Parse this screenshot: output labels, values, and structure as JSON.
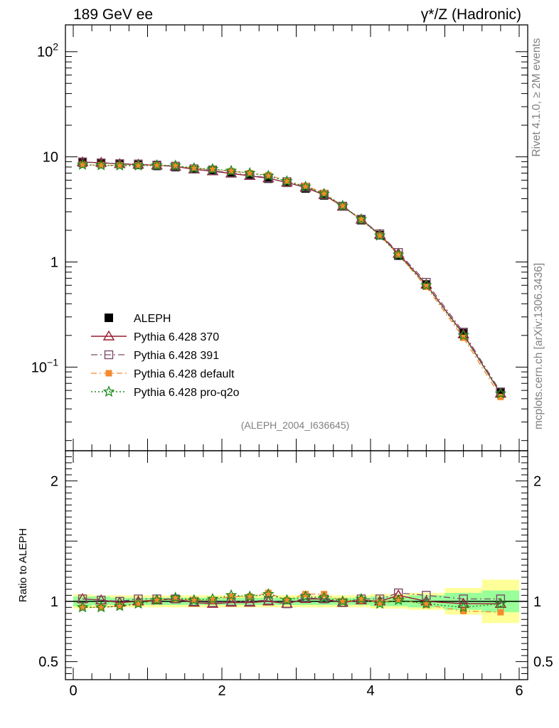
{
  "header": {
    "left_title": "189 GeV ee",
    "right_title": "γ*/Z (Hadronic)"
  },
  "side": {
    "rivet_label": "Rivet 4.1.0, ≥ 2M events",
    "source_label": "mcplots.cern.ch [arXiv:1306.3436]"
  },
  "analysis_label": "(ALEPH_2004_I636645)",
  "colors": {
    "data": "#000000",
    "p370": "#9a1b2e",
    "p391": "#7a4a6a",
    "default": "#f58a2e",
    "proq2o": "#1a8a1a",
    "band_inner": "#99ff99",
    "band_outer": "#ffff99"
  },
  "chart_data": [
    {
      "type": "scatter",
      "panel": "main",
      "ylabel": "",
      "yscale": "log",
      "ylim": [
        0.016,
        180
      ],
      "xlim": [
        -0.1,
        6.1
      ],
      "y_tick_labels": [
        "10^2",
        "10",
        "1",
        "10^-1"
      ],
      "y_tick_values": [
        100,
        10,
        1,
        0.1
      ],
      "x": [
        0.125,
        0.375,
        0.625,
        0.875,
        1.125,
        1.375,
        1.625,
        1.875,
        2.125,
        2.375,
        2.625,
        2.875,
        3.125,
        3.375,
        3.625,
        3.875,
        4.125,
        4.375,
        4.75,
        5.25,
        5.75
      ],
      "legend": [
        "ALEPH",
        "Pythia 6.428 370",
        "Pythia 6.428 391",
        "Pythia 6.428 default",
        "Pythia 6.428 pro-q2o"
      ],
      "series": [
        {
          "name": "ALEPH",
          "key": "data",
          "values": [
            8.8,
            8.7,
            8.6,
            8.4,
            8.2,
            8.0,
            7.7,
            7.5,
            7.0,
            6.7,
            6.2,
            5.8,
            5.0,
            4.3,
            3.4,
            2.5,
            1.8,
            1.15,
            0.61,
            0.21,
            0.057
          ]
        },
        {
          "name": "Pythia 6.428 370",
          "key": "p370",
          "values": [
            8.9,
            8.8,
            8.55,
            8.45,
            8.3,
            8.1,
            7.6,
            7.3,
            6.95,
            6.6,
            6.25,
            5.7,
            5.1,
            4.35,
            3.37,
            2.53,
            1.82,
            1.2,
            0.61,
            0.205,
            0.056
          ]
        },
        {
          "name": "Pythia 6.428 391",
          "key": "p391",
          "values": [
            8.95,
            8.75,
            8.6,
            8.55,
            8.35,
            8.15,
            7.65,
            7.4,
            7.0,
            6.7,
            6.3,
            5.68,
            5.15,
            4.4,
            3.38,
            2.55,
            1.85,
            1.23,
            0.64,
            0.215,
            0.058
          ]
        },
        {
          "name": "Pythia 6.428 default",
          "key": "default",
          "values": [
            8.4,
            8.3,
            8.3,
            8.3,
            8.3,
            8.2,
            7.8,
            7.6,
            7.3,
            7.0,
            6.7,
            5.9,
            5.3,
            4.55,
            3.4,
            2.52,
            1.78,
            1.17,
            0.58,
            0.19,
            0.052
          ]
        },
        {
          "name": "Pythia 6.428 pro-q2o",
          "key": "proq2o",
          "values": [
            8.4,
            8.3,
            8.25,
            8.25,
            8.3,
            8.25,
            7.8,
            7.65,
            7.35,
            7.0,
            6.6,
            5.85,
            5.2,
            4.45,
            3.42,
            2.55,
            1.78,
            1.17,
            0.6,
            0.2,
            0.056
          ]
        }
      ]
    },
    {
      "type": "scatter",
      "panel": "ratio",
      "ylabel": "Ratio to ALEPH",
      "ylim": [
        0.35,
        2.25
      ],
      "xlim": [
        -0.1,
        6.1
      ],
      "y_tick_labels": [
        "2",
        "1",
        "0.5"
      ],
      "y_tick_values": [
        2,
        1,
        0.5
      ],
      "x_tick_labels": [
        "0",
        "2",
        "4",
        "6"
      ],
      "x_tick_values": [
        0,
        2,
        4,
        6
      ],
      "x": [
        0.125,
        0.375,
        0.625,
        0.875,
        1.125,
        1.375,
        1.625,
        1.875,
        2.125,
        2.375,
        2.625,
        2.875,
        3.125,
        3.375,
        3.625,
        3.875,
        4.125,
        4.375,
        4.75,
        5.25,
        5.75
      ],
      "bands": [
        {
          "x0": 0.0,
          "x1": 0.25,
          "inner": [
            0.96,
            1.04
          ],
          "outer": [
            0.94,
            1.06
          ]
        },
        {
          "x0": 0.25,
          "x1": 0.5,
          "inner": [
            0.97,
            1.04
          ],
          "outer": [
            0.95,
            1.05
          ]
        },
        {
          "x0": 0.5,
          "x1": 0.75,
          "inner": [
            0.97,
            1.03
          ],
          "outer": [
            0.95,
            1.05
          ]
        },
        {
          "x0": 0.75,
          "x1": 1.0,
          "inner": [
            0.97,
            1.03
          ],
          "outer": [
            0.95,
            1.05
          ]
        },
        {
          "x0": 1.0,
          "x1": 1.25,
          "inner": [
            0.97,
            1.03
          ],
          "outer": [
            0.95,
            1.05
          ]
        },
        {
          "x0": 1.25,
          "x1": 1.5,
          "inner": [
            0.97,
            1.03
          ],
          "outer": [
            0.95,
            1.05
          ]
        },
        {
          "x0": 1.5,
          "x1": 1.75,
          "inner": [
            0.97,
            1.03
          ],
          "outer": [
            0.95,
            1.05
          ]
        },
        {
          "x0": 1.75,
          "x1": 2.0,
          "inner": [
            0.97,
            1.03
          ],
          "outer": [
            0.95,
            1.05
          ]
        },
        {
          "x0": 2.0,
          "x1": 2.25,
          "inner": [
            0.97,
            1.03
          ],
          "outer": [
            0.95,
            1.05
          ]
        },
        {
          "x0": 2.25,
          "x1": 2.5,
          "inner": [
            0.97,
            1.03
          ],
          "outer": [
            0.95,
            1.05
          ]
        },
        {
          "x0": 2.5,
          "x1": 2.75,
          "inner": [
            0.97,
            1.03
          ],
          "outer": [
            0.95,
            1.05
          ]
        },
        {
          "x0": 2.75,
          "x1": 3.0,
          "inner": [
            0.97,
            1.03
          ],
          "outer": [
            0.95,
            1.05
          ]
        },
        {
          "x0": 3.0,
          "x1": 3.25,
          "inner": [
            0.97,
            1.03
          ],
          "outer": [
            0.95,
            1.05
          ]
        },
        {
          "x0": 3.25,
          "x1": 3.5,
          "inner": [
            0.97,
            1.03
          ],
          "outer": [
            0.95,
            1.05
          ]
        },
        {
          "x0": 3.5,
          "x1": 3.75,
          "inner": [
            0.97,
            1.03
          ],
          "outer": [
            0.95,
            1.05
          ]
        },
        {
          "x0": 3.75,
          "x1": 4.0,
          "inner": [
            0.97,
            1.03
          ],
          "outer": [
            0.95,
            1.05
          ]
        },
        {
          "x0": 4.0,
          "x1": 4.25,
          "inner": [
            0.96,
            1.04
          ],
          "outer": [
            0.94,
            1.06
          ]
        },
        {
          "x0": 4.25,
          "x1": 4.5,
          "inner": [
            0.96,
            1.04
          ],
          "outer": [
            0.94,
            1.06
          ]
        },
        {
          "x0": 4.5,
          "x1": 5.0,
          "inner": [
            0.95,
            1.05
          ],
          "outer": [
            0.93,
            1.07
          ]
        },
        {
          "x0": 5.0,
          "x1": 5.5,
          "inner": [
            0.93,
            1.07
          ],
          "outer": [
            0.89,
            1.11
          ]
        },
        {
          "x0": 5.5,
          "x1": 6.0,
          "inner": [
            0.91,
            1.09
          ],
          "outer": [
            0.82,
            1.18
          ]
        }
      ],
      "series": [
        {
          "name": "Pythia 6.428 370",
          "key": "p370",
          "values": [
            1.02,
            1.01,
            0.99,
            1.0,
            1.01,
            1.02,
            0.99,
            0.98,
            0.99,
            0.99,
            1.0,
            0.98,
            1.02,
            1.02,
            0.99,
            1.01,
            1.0,
            1.05,
            1.0,
            0.98,
            0.98
          ]
        },
        {
          "name": "Pythia 6.428 391",
          "key": "p391",
          "values": [
            1.02,
            1.01,
            1.0,
            1.02,
            1.02,
            1.02,
            1.0,
            0.99,
            1.0,
            1.0,
            1.01,
            0.98,
            1.03,
            1.02,
            0.99,
            1.02,
            1.02,
            1.07,
            1.05,
            1.02,
            1.02
          ]
        },
        {
          "name": "Pythia 6.428 default",
          "key": "default",
          "values": [
            0.95,
            0.95,
            0.96,
            0.98,
            1.01,
            1.02,
            1.01,
            1.01,
            1.04,
            1.04,
            1.07,
            1.01,
            1.06,
            1.06,
            1.0,
            1.01,
            0.99,
            1.02,
            0.97,
            0.92,
            0.91
          ]
        },
        {
          "name": "Pythia 6.428 pro-q2o",
          "key": "proq2o",
          "values": [
            0.95,
            0.95,
            0.96,
            0.98,
            1.01,
            1.03,
            1.01,
            1.02,
            1.05,
            1.04,
            1.06,
            1.01,
            1.04,
            1.03,
            1.0,
            1.02,
            0.98,
            1.01,
            0.98,
            0.95,
            0.98
          ]
        }
      ]
    }
  ]
}
